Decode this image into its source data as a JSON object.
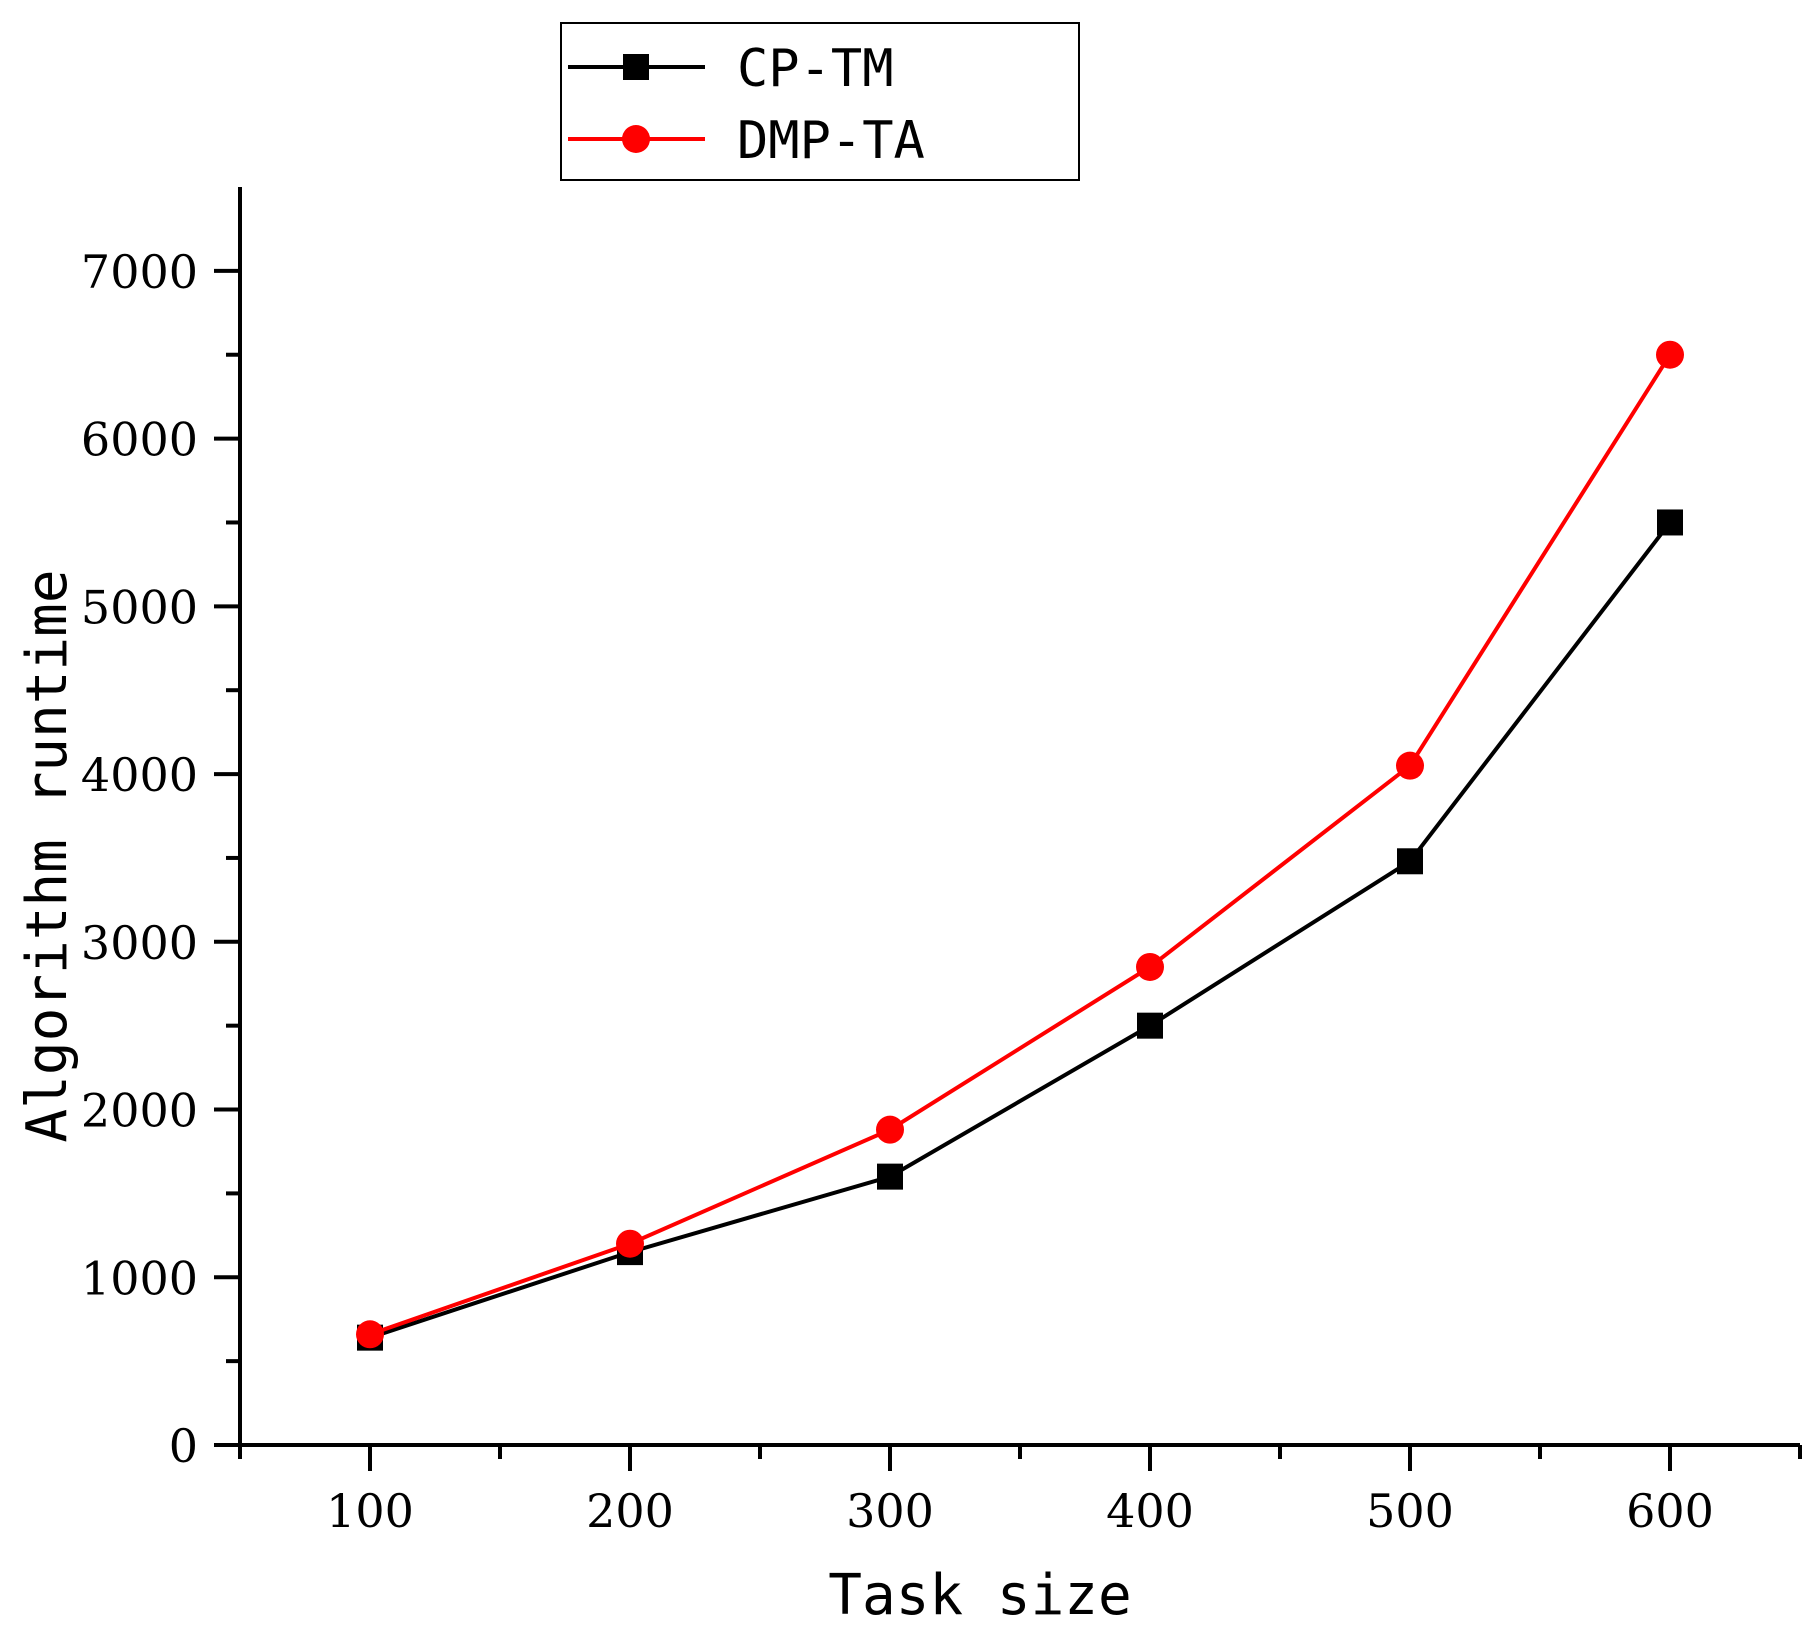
{
  "chart_data": {
    "type": "line",
    "title": "",
    "xlabel": "Task size",
    "ylabel": "Algorithm runtime",
    "x": [
      100,
      200,
      300,
      400,
      500,
      600
    ],
    "xlim": [
      50,
      650
    ],
    "ylim": [
      0,
      7500
    ],
    "xticks": [
      100,
      200,
      300,
      400,
      500,
      600
    ],
    "xtick_labels": [
      "100",
      "200",
      "300",
      "400",
      "500",
      "600"
    ],
    "yticks": [
      0,
      1000,
      2000,
      3000,
      4000,
      5000,
      6000,
      7000
    ],
    "ytick_labels": [
      "0",
      "1000",
      "2000",
      "3000",
      "4000",
      "5000",
      "6000",
      "7000"
    ],
    "grid": false,
    "legend_position": "top-center",
    "series": [
      {
        "name": "CP-TM",
        "color": "#000000",
        "marker": "square",
        "values": [
          640,
          1150,
          1600,
          2500,
          3480,
          5500
        ]
      },
      {
        "name": "DMP-TA",
        "color": "#ff0000",
        "marker": "circle",
        "values": [
          660,
          1200,
          1880,
          2850,
          4050,
          6500
        ]
      }
    ]
  }
}
